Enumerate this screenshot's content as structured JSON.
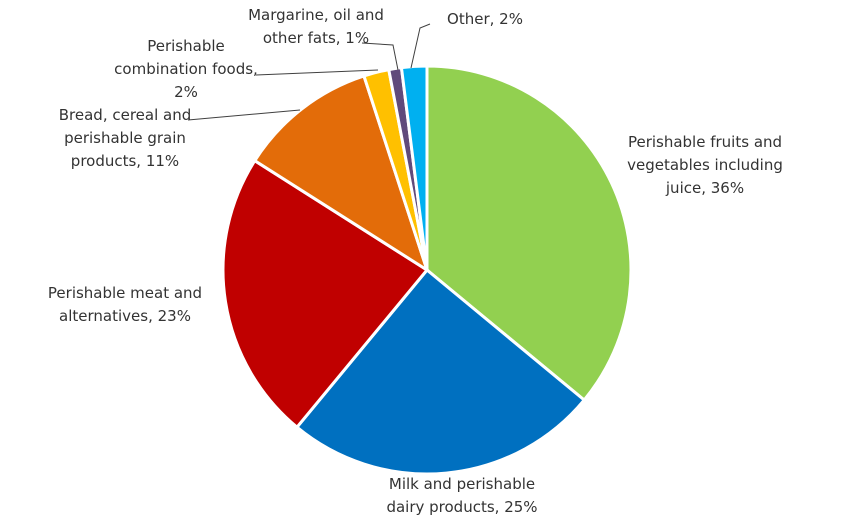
{
  "chart_data": {
    "type": "pie",
    "title": "",
    "legend": "none",
    "slices": [
      {
        "label": "Perishable fruits and vegetables including juice",
        "value": 36,
        "display": "36%",
        "color": "#92d050"
      },
      {
        "label": "Milk and perishable dairy products",
        "value": 25,
        "display": "25%",
        "color": "#0070c0"
      },
      {
        "label": "Perishable meat and alternatives",
        "value": 23,
        "display": "23%",
        "color": "#c00000"
      },
      {
        "label": "Bread, cereal and perishable grain products",
        "value": 11,
        "display": "11%",
        "color": "#e36c09"
      },
      {
        "label": "Perishable combination foods",
        "value": 2,
        "display": "2%",
        "color": "#ffc000"
      },
      {
        "label": "Margarine, oil and other fats",
        "value": 1,
        "display": "1%",
        "color": "#604a7b"
      },
      {
        "label": "Other",
        "value": 2,
        "display": "2%",
        "color": "#00b0f0"
      }
    ],
    "data_labels": [
      [
        "Perishable fruits and",
        "vegetables including",
        "juice, 36%"
      ],
      [
        "Milk and perishable",
        "dairy products, 25%"
      ],
      [
        "Perishable meat and",
        "alternatives, 23%"
      ],
      [
        "Bread, cereal and",
        "perishable grain",
        "products, 11%"
      ],
      [
        "Perishable",
        "combination foods,",
        "2%"
      ],
      [
        "Margarine, oil and",
        "other fats, 1%"
      ],
      [
        "Other, 2%"
      ]
    ]
  }
}
